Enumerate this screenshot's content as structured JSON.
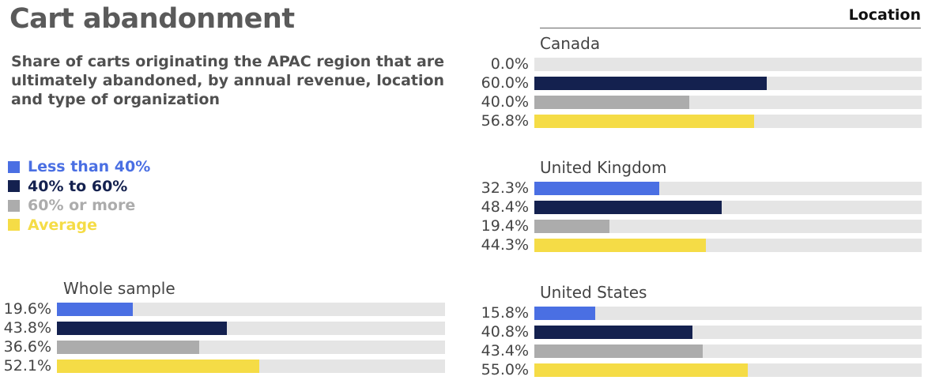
{
  "title": "Cart abandonment",
  "subtitle": "Share of carts originating the APAC region that are ultimately abandoned, by annual revenue, location and type of organization",
  "colors": [
    "#4a6fe3",
    "#14214f",
    "#acacac",
    "#f5dc46"
  ],
  "legend": [
    "Less than 40%",
    "40% to 60%",
    "60% or more",
    "Average"
  ],
  "chart_data": {
    "type": "bar",
    "orientation": "horizontal",
    "xlim": [
      0,
      100
    ],
    "series_names": [
      "Less than 40%",
      "40% to 60%",
      "60% or more",
      "Average"
    ],
    "location_header": "Location",
    "groups": [
      {
        "name": "Whole sample",
        "values": [
          19.6,
          43.8,
          36.6,
          52.1
        ],
        "labels": [
          "19.6%",
          "43.8%",
          "36.6%",
          "52.1%"
        ]
      },
      {
        "name": "Canada",
        "values": [
          0.0,
          60.0,
          40.0,
          56.8
        ],
        "labels": [
          "0.0%",
          "60.0%",
          "40.0%",
          "56.8%"
        ]
      },
      {
        "name": "United Kingdom",
        "values": [
          32.3,
          48.4,
          19.4,
          44.3
        ],
        "labels": [
          "32.3%",
          "48.4%",
          "19.4%",
          "44.3%"
        ]
      },
      {
        "name": "United States",
        "values": [
          15.8,
          40.8,
          43.4,
          55.0
        ],
        "labels": [
          "15.8%",
          "40.8%",
          "43.4%",
          "55.0%"
        ]
      }
    ]
  }
}
